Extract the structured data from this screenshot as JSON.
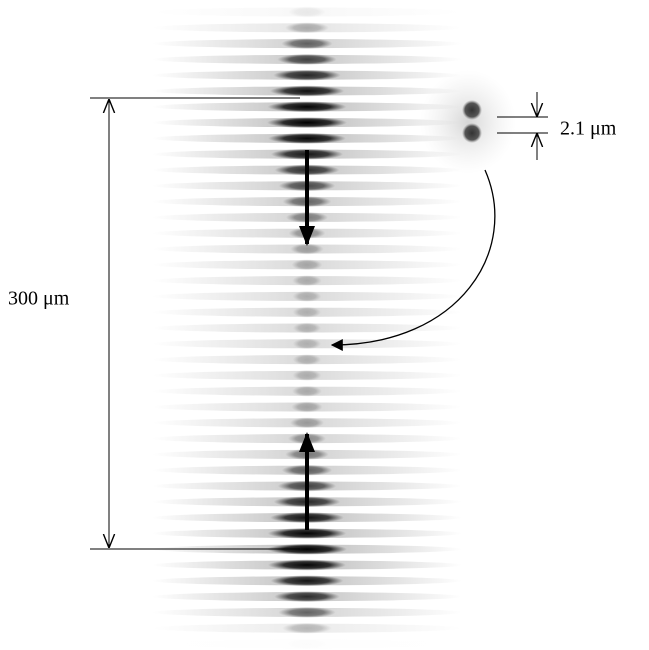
{
  "labels": {
    "separation": "300 μm",
    "spot_spacing": "2.1 μm"
  }
}
